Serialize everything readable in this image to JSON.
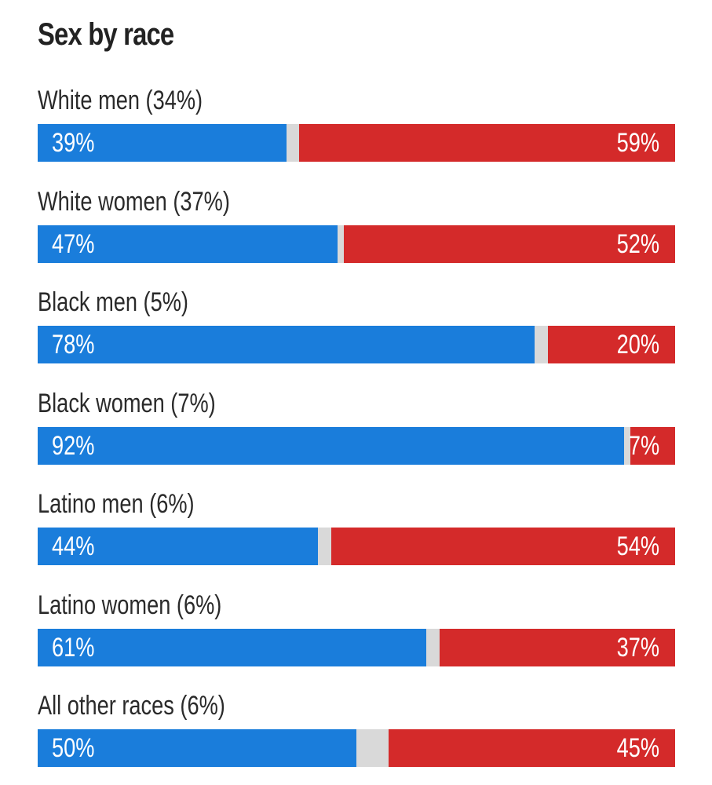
{
  "colors": {
    "dem": "#1a7ddb",
    "rep": "#d42a2a",
    "other": "#d9d9d9",
    "title": "#222222"
  },
  "chart_data": {
    "type": "bar",
    "orientation": "horizontal",
    "stacked": true,
    "title": "Sex by race",
    "xlim": [
      0,
      100
    ],
    "grid": false,
    "legend": "none",
    "categories": [
      "White men (34%)",
      "White women (37%)",
      "Black men (5%)",
      "Black women (7%)",
      "Latino men (6%)",
      "Latino women (6%)",
      "All other races (6%)"
    ],
    "series": [
      {
        "color": "#1a7ddb",
        "values": [
          39,
          47,
          78,
          92,
          44,
          61,
          50
        ],
        "labels": [
          "39%",
          "47%",
          "78%",
          "92%",
          "44%",
          "61%",
          "50%"
        ]
      },
      {
        "color": "#d42a2a",
        "values": [
          59,
          52,
          20,
          7,
          54,
          37,
          45
        ],
        "labels": [
          "59%",
          "52%",
          "20%",
          "7%",
          "54%",
          "37%",
          "45%"
        ]
      }
    ]
  }
}
